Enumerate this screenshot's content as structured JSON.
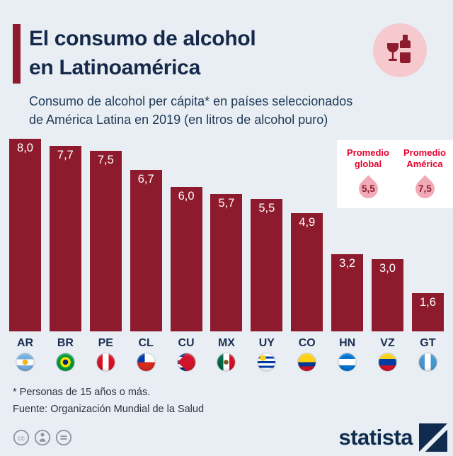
{
  "header": {
    "title_line1": "El consumo de alcohol",
    "title_line2": "en Latinoamérica",
    "subtitle_line1": "Consumo de alcohol per cápita* en países seleccionados",
    "subtitle_line2": "de América Latina en 2019 (en litros de alcohol puro)"
  },
  "legend": {
    "global": {
      "label": "Promedio global",
      "value": "5,5"
    },
    "america": {
      "label": "Promedio América",
      "value": "7,5"
    }
  },
  "chart_data": {
    "type": "bar",
    "title": "Consumo de alcohol per cápita en países seleccionados de América Latina en 2019",
    "unit": "litros de alcohol puro",
    "categories": [
      "AR",
      "BR",
      "PE",
      "CL",
      "CU",
      "MX",
      "UY",
      "CO",
      "HN",
      "VZ",
      "GT"
    ],
    "values": [
      8.0,
      7.7,
      7.5,
      6.7,
      6.0,
      5.7,
      5.5,
      4.9,
      3.2,
      3.0,
      1.6
    ],
    "labels": [
      "8,0",
      "7,7",
      "7,5",
      "6,7",
      "6,0",
      "5,7",
      "5,5",
      "4,9",
      "3,2",
      "3,0",
      "1,6"
    ],
    "flags": [
      "ar",
      "br",
      "pe",
      "cl",
      "cu",
      "mx",
      "uy",
      "co",
      "hn",
      "vz",
      "gt"
    ],
    "ylim": [
      0,
      8
    ],
    "grid": false,
    "legend_position": "top-right",
    "annotations": [
      {
        "label": "Promedio global",
        "value": 5.5
      },
      {
        "label": "Promedio América",
        "value": 7.5
      }
    ]
  },
  "footer": {
    "footnote": "* Personas de 15 años o más.",
    "source": "Fuente: Organización Mundial de la Salud"
  },
  "brand": {
    "name": "statista"
  },
  "icons": {
    "wine": "wine-glass-and-bottle-icon",
    "droplet": "droplet-icon",
    "cc": "creative-commons-icon",
    "attribution": "attribution-icon",
    "no_derivatives": "no-derivatives-icon",
    "logo": "statista-logo-square"
  },
  "colors": {
    "background": "#e8eef3",
    "bar": "#8d1b2d",
    "title": "#16294a",
    "legend_red": "#e4032e",
    "droplet_pink": "#f1aab6",
    "badge_pink": "#f6c9ce",
    "brand_navy": "#0f2c4e"
  }
}
